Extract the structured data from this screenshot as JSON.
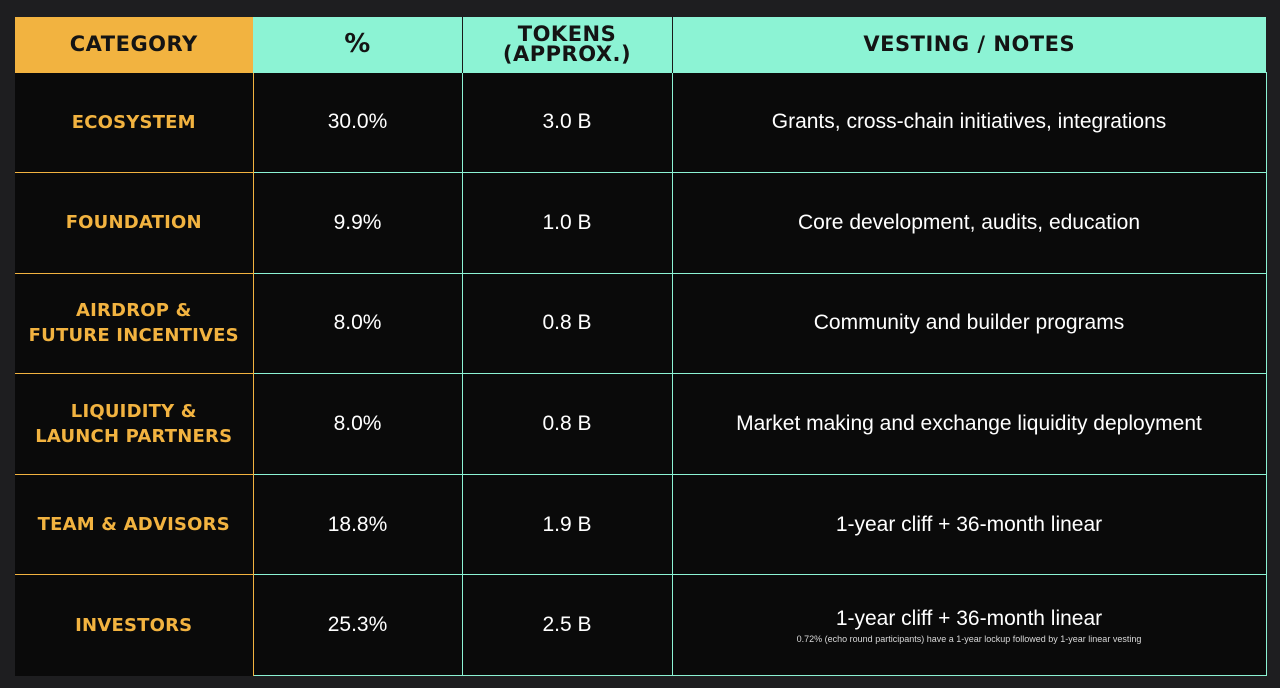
{
  "headers": {
    "category": "CATEGORY",
    "percent": "%",
    "tokens_line1": "TOKENS",
    "tokens_line2": "(APPROX.)",
    "vesting": "VESTING / NOTES"
  },
  "rows": [
    {
      "category": [
        "ECOSYSTEM"
      ],
      "percent": "30.0%",
      "tokens": "3.0 B",
      "note": "Grants, cross-chain initiatives, integrations",
      "subnote": ""
    },
    {
      "category": [
        "FOUNDATION"
      ],
      "percent": "9.9%",
      "tokens": "1.0 B",
      "note": "Core development, audits, education",
      "subnote": ""
    },
    {
      "category": [
        "AIRDROP &",
        "FUTURE INCENTIVES"
      ],
      "percent": "8.0%",
      "tokens": "0.8 B",
      "note": "Community and builder programs",
      "subnote": ""
    },
    {
      "category": [
        "LIQUIDITY &",
        "LAUNCH PARTNERS"
      ],
      "percent": "8.0%",
      "tokens": "0.8 B",
      "note": "Market making and exchange liquidity deployment",
      "subnote": ""
    },
    {
      "category": [
        "TEAM & ADVISORS"
      ],
      "percent": "18.8%",
      "tokens": "1.9 B",
      "note": "1-year cliff + 36-month linear",
      "subnote": ""
    },
    {
      "category": [
        "INVESTORS"
      ],
      "percent": "25.3%",
      "tokens": "2.5 B",
      "note": "1-year cliff + 36-month linear",
      "subnote": "0.72% (echo round participants) have a 1-year lockup followed by 1-year linear vesting"
    }
  ],
  "colors": {
    "accent_orange": "#f2b340",
    "accent_teal": "#8cf3d4",
    "cell_background": "#0a0a0a",
    "page_background": "#1e1e20"
  }
}
